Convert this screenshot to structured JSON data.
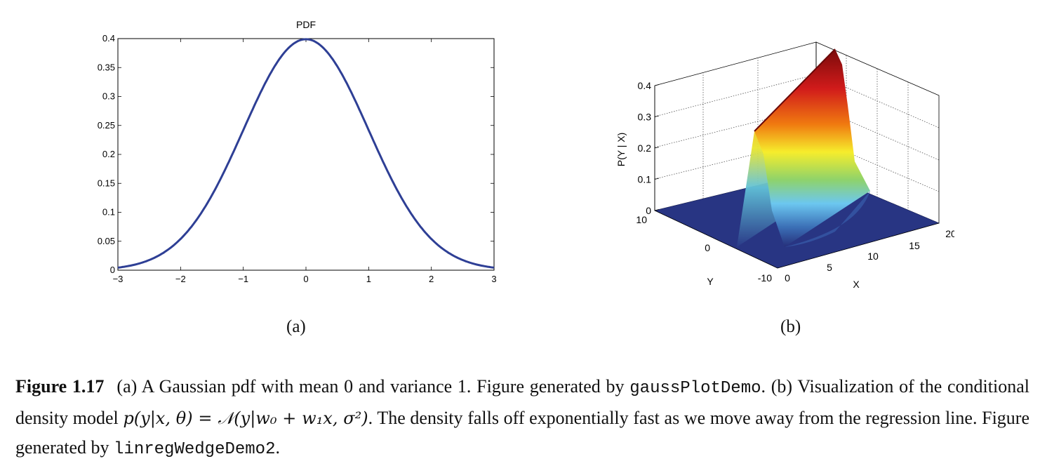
{
  "chart_data": [
    {
      "type": "line",
      "title": "PDF",
      "xlabel": "",
      "ylabel": "",
      "xlim": [
        -3,
        3
      ],
      "ylim": [
        0,
        0.4
      ],
      "xticks": [
        "−3",
        "−2",
        "−1",
        "0",
        "1",
        "2",
        "3"
      ],
      "yticks": [
        "0",
        "0.05",
        "0.1",
        "0.15",
        "0.2",
        "0.25",
        "0.3",
        "0.35",
        "0.4"
      ],
      "grid": false,
      "series": [
        {
          "color": "#2e3f95",
          "x": [
            -3,
            -2.75,
            -2.5,
            -2.25,
            -2,
            -1.75,
            -1.5,
            -1.25,
            -1,
            -0.75,
            -0.5,
            -0.25,
            0,
            0.25,
            0.5,
            0.75,
            1,
            1.25,
            1.5,
            1.75,
            2,
            2.25,
            2.5,
            2.75,
            3
          ],
          "y": [
            0.0044,
            0.0091,
            0.0175,
            0.0317,
            0.054,
            0.0863,
            0.1295,
            0.1826,
            0.242,
            0.3011,
            0.3521,
            0.3867,
            0.3989,
            0.3867,
            0.3521,
            0.3011,
            0.242,
            0.1826,
            0.1295,
            0.0863,
            0.054,
            0.0317,
            0.0175,
            0.0091,
            0.0044
          ]
        }
      ]
    },
    {
      "type": "surface",
      "title": "",
      "xlabel": "X",
      "ylabel": "Y",
      "zlabel": "P(Y | X)",
      "xlim": [
        0,
        20
      ],
      "ylim": [
        -10,
        10
      ],
      "zlim": [
        0,
        0.4
      ],
      "xticks": [
        "0",
        "5",
        "10",
        "15",
        "20"
      ],
      "yticks": [
        "-10",
        "0",
        "10"
      ],
      "zticks": [
        "0",
        "0.1",
        "0.2",
        "0.3",
        "0.4"
      ],
      "grid": true,
      "colormap": "jet",
      "ridge": {
        "x": [
          0,
          20
        ],
        "y_center": [
          -6,
          9
        ],
        "peak_density": [
          0.22,
          0.43
        ]
      }
    }
  ],
  "labels": {
    "a": "(a)",
    "b": "(b)"
  },
  "caption": {
    "label": "Figure 1.17",
    "p1": "(a) A Gaussian pdf with mean 0 and variance 1. Figure generated by ",
    "code1": "gaussPlotDemo",
    "p2": ". (b) Visualization of the conditional density model ",
    "math": "p(y|x, θ) = 𝒩(y|w₀ + w₁x, σ²)",
    "p3": ". The density falls off exponentially fast as we move away from the regression line. Figure generated by ",
    "code2": "linregWedgeDemo2",
    "p4": "."
  }
}
